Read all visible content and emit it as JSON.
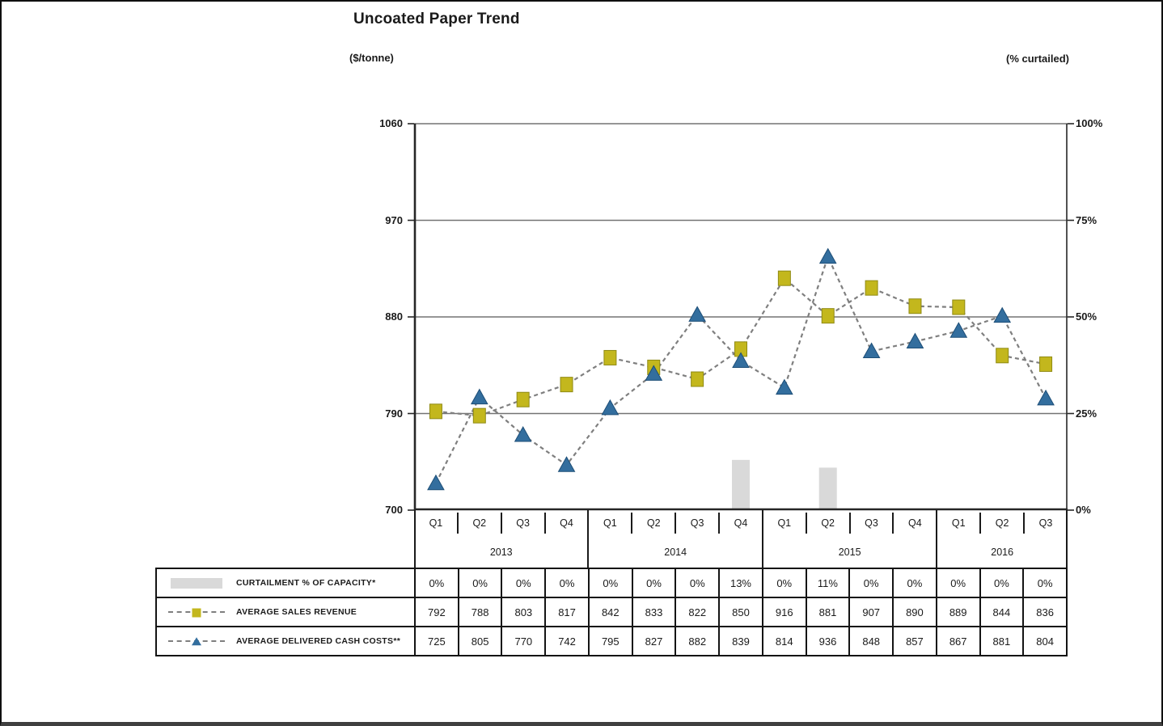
{
  "page": {
    "title": "Uncoated Paper Trend",
    "left_unit_label": "($/tonne)",
    "right_unit_label": "(% curtailed)"
  },
  "chart_data": {
    "type": "line",
    "title": "Uncoated Paper Trend",
    "grid": true,
    "legend_position": "table-left",
    "left_axis": {
      "label": "($/tonne)",
      "ticks": [
        "1060",
        "970",
        "880",
        "790",
        "700"
      ],
      "range": [
        700,
        1060
      ]
    },
    "right_axis": {
      "label": "(% curtailed)",
      "ticks": [
        "100%",
        "75%",
        "50%",
        "25%",
        "0%"
      ],
      "range": [
        0,
        100
      ]
    },
    "x_groups": [
      {
        "year": "2013",
        "quarters": [
          "Q1",
          "Q2",
          "Q3",
          "Q4"
        ]
      },
      {
        "year": "2014",
        "quarters": [
          "Q1",
          "Q2",
          "Q3",
          "Q4"
        ]
      },
      {
        "year": "2015",
        "quarters": [
          "Q1",
          "Q2",
          "Q3",
          "Q4"
        ]
      },
      {
        "year": "2016",
        "quarters": [
          "Q1",
          "Q2",
          "Q3"
        ]
      }
    ],
    "series": [
      {
        "name": "CURTAILMENT % OF CAPACITY*",
        "type": "bar",
        "axis": "right",
        "color": "#d9d9d9",
        "values": [
          0,
          0,
          0,
          0,
          0,
          0,
          0,
          13,
          0,
          11,
          0,
          0,
          0,
          0,
          0
        ],
        "display": [
          "0%",
          "0%",
          "0%",
          "0%",
          "0%",
          "0%",
          "0%",
          "13%",
          "0%",
          "11%",
          "0%",
          "0%",
          "0%",
          "0%",
          "0%"
        ]
      },
      {
        "name": "AVERAGE SALES REVENUE",
        "type": "line",
        "marker": "square",
        "axis": "left",
        "color": "#c3b71d",
        "marker_edge": "#8f8a14",
        "line_color": "#7f7f7f",
        "values": [
          792,
          788,
          803,
          817,
          842,
          833,
          822,
          850,
          916,
          881,
          907,
          890,
          889,
          844,
          836
        ],
        "display": [
          "792",
          "788",
          "803",
          "817",
          "842",
          "833",
          "822",
          "850",
          "916",
          "881",
          "907",
          "890",
          "889",
          "844",
          "836"
        ]
      },
      {
        "name": "AVERAGE DELIVERED CASH COSTS**",
        "type": "line",
        "marker": "triangle",
        "axis": "left",
        "color": "#336e9e",
        "marker_edge": "#1d4e77",
        "line_color": "#7f7f7f",
        "values": [
          725,
          805,
          770,
          742,
          795,
          827,
          882,
          839,
          814,
          936,
          848,
          857,
          867,
          881,
          804
        ],
        "display": [
          "725",
          "805",
          "770",
          "742",
          "795",
          "827",
          "882",
          "839",
          "814",
          "936",
          "848",
          "857",
          "867",
          "881",
          "804"
        ]
      }
    ],
    "style": {
      "gridline_color": "#737373",
      "axis_color": "#262626",
      "dash_color": "#7f7f7f",
      "bar_color": "#d9d9d9"
    }
  }
}
